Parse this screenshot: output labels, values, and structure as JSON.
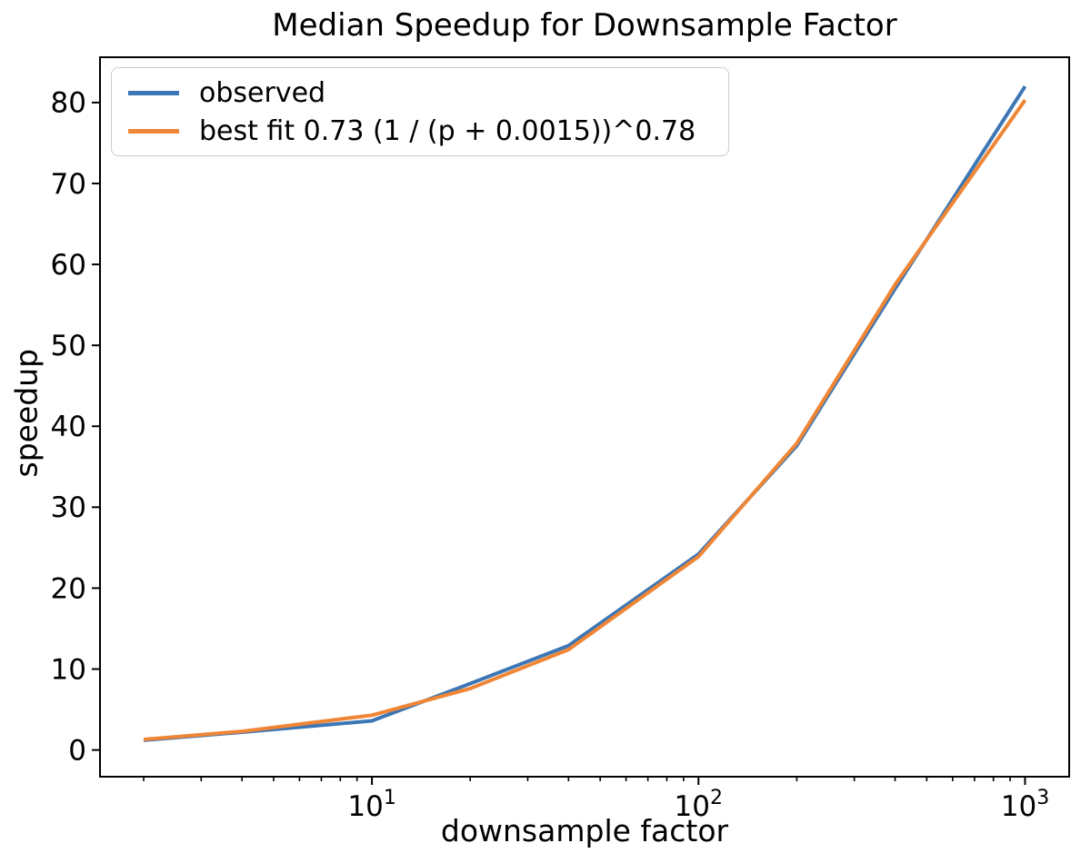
{
  "window": {
    "background": "#ffffff"
  },
  "chart_data": {
    "type": "line",
    "title": "Median Speedup for Downsample Factor",
    "xlabel": "downsample factor",
    "ylabel": "speedup",
    "x_scale": "log",
    "grid": false,
    "x": [
      2,
      4,
      10,
      20,
      40,
      100,
      200,
      400,
      1000
    ],
    "series": [
      {
        "name": "observed",
        "color": "#3d76b4",
        "values": [
          1.2,
          2.2,
          3.6,
          8.2,
          12.9,
          24.2,
          37.6,
          57.0,
          82.0
        ]
      },
      {
        "name": "best fit 0.73 (1 / (p + 0.0015))^0.78",
        "color": "#ef8636",
        "values": [
          1.3,
          2.3,
          4.3,
          7.6,
          12.4,
          23.9,
          37.9,
          57.5,
          80.3
        ]
      }
    ],
    "xlim": [
      1.47,
      1365
    ],
    "ylim": [
      -3.3,
      85.6
    ],
    "yticks": [
      0,
      10,
      20,
      30,
      40,
      50,
      60,
      70,
      80
    ],
    "xticks": [
      {
        "value": 10,
        "base": "10",
        "exp": "1"
      },
      {
        "value": 100,
        "base": "10",
        "exp": "2"
      },
      {
        "value": 1000,
        "base": "10",
        "exp": "3"
      }
    ],
    "legend": {
      "position": "upper left"
    }
  }
}
